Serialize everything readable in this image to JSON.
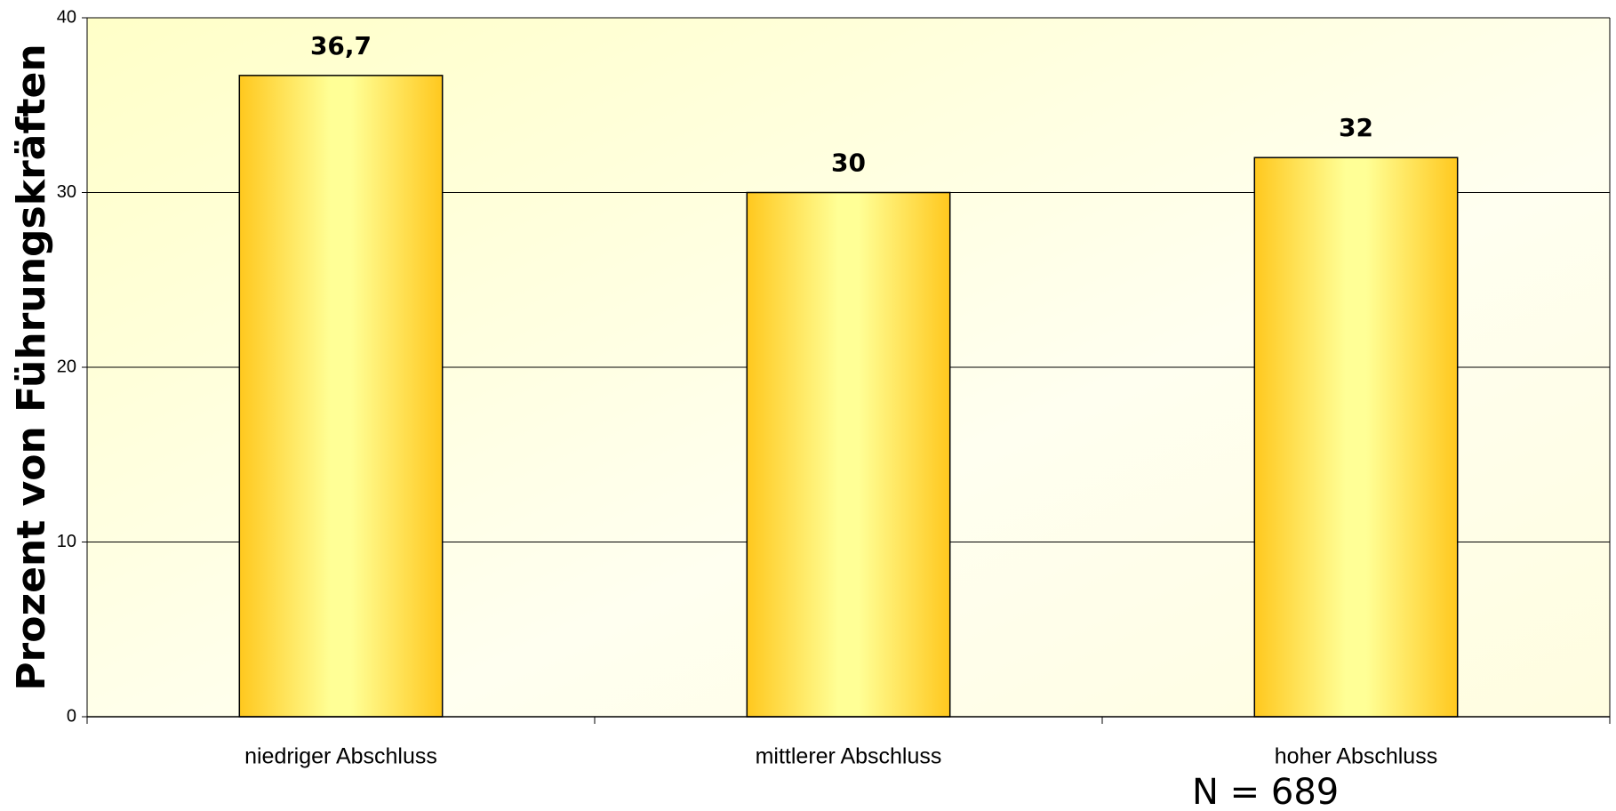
{
  "chart_data": {
    "type": "bar",
    "y_label": "Prozent von Führungskräften",
    "categories": [
      "niedriger Abschluss",
      "mittlerer Abschluss",
      "hoher Abschluss"
    ],
    "values": [
      36.7,
      30,
      32
    ],
    "value_labels": [
      "36,7",
      "30",
      "32"
    ],
    "ylim": [
      0,
      40
    ],
    "yticks": [
      0,
      10,
      20,
      30,
      40
    ],
    "grid": true,
    "annotation": "N = 689"
  }
}
